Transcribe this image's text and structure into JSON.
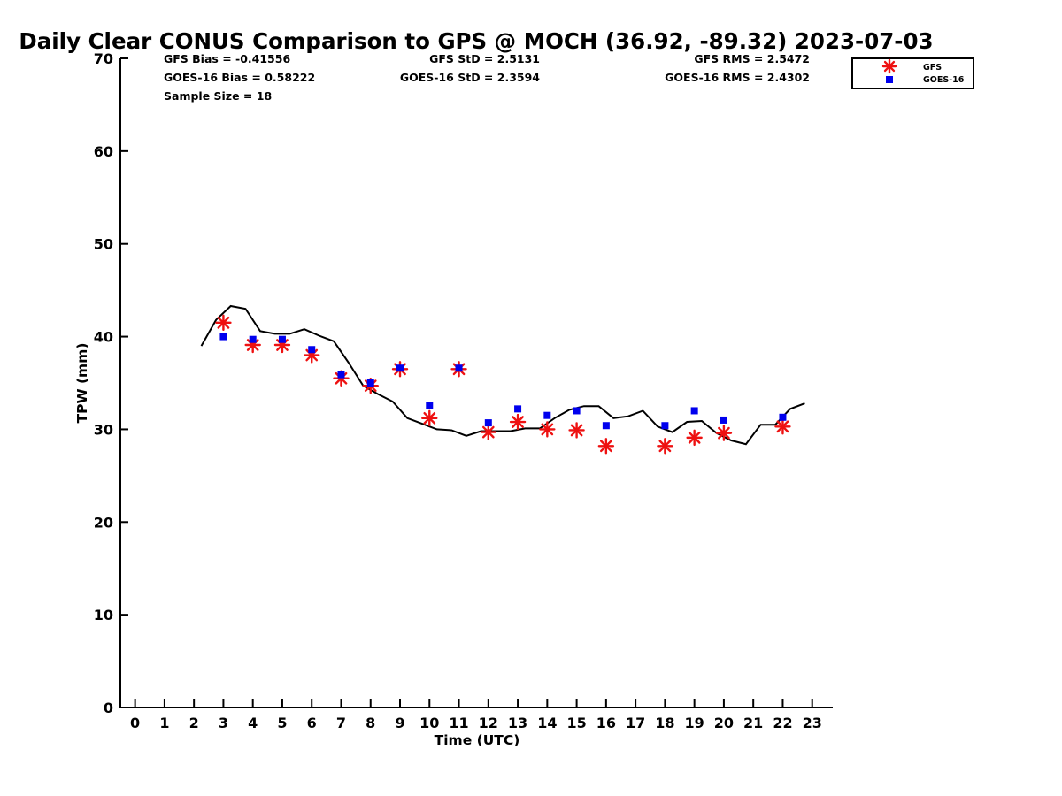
{
  "chart_data": {
    "type": "scatter",
    "title": "Daily Clear CONUS Comparison to GPS @ MOCH (36.92, -89.32) 2023-07-03",
    "xlabel": "Time (UTC)",
    "ylabel": "TPW (mm)",
    "xlim": [
      -0.5,
      23.7
    ],
    "ylim": [
      0,
      70
    ],
    "x_ticks": [
      "0",
      "1",
      "2",
      "3",
      "4",
      "5",
      "6",
      "7",
      "8",
      "9",
      "10",
      "11",
      "12",
      "13",
      "14",
      "15",
      "16",
      "17",
      "18",
      "19",
      "20",
      "21",
      "22",
      "23"
    ],
    "y_ticks": [
      "0",
      "10",
      "20",
      "30",
      "40",
      "50",
      "60",
      "70"
    ],
    "stats": {
      "gfs_bias": "GFS Bias = -0.41556",
      "goes_bias": "GOES-16 Bias = 0.58222",
      "sample_size": "Sample Size = 18",
      "gfs_std": "GFS StD = 2.5131",
      "goes_std": "GOES-16 StD = 2.3594",
      "gfs_rms": "GFS RMS = 2.5472",
      "goes_rms": "GOES-16 RMS = 2.4302"
    },
    "legend_position": "top-right outside plot",
    "gps_line": {
      "color": "#000000",
      "x": [
        2.25,
        2.75,
        3.25,
        3.75,
        4.25,
        4.75,
        5.25,
        5.75,
        6.25,
        6.75,
        7.25,
        7.75,
        8.25,
        8.75,
        9.25,
        9.75,
        10.25,
        10.75,
        11.25,
        11.75,
        12.25,
        12.75,
        13.25,
        13.75,
        14.25,
        14.75,
        15.25,
        15.75,
        16.25,
        16.75,
        17.25,
        17.75,
        18.25,
        18.75,
        19.25,
        19.75,
        20.25,
        20.75,
        21.25,
        21.75,
        22.25,
        22.75
      ],
      "y": [
        39,
        41.8,
        43.3,
        43,
        40.6,
        40.3,
        40.3,
        40.8,
        40.1,
        39.5,
        37.2,
        34.7,
        33.8,
        33,
        31.2,
        30.6,
        30,
        29.9,
        29.3,
        29.8,
        29.8,
        29.8,
        30.1,
        30.1,
        31.2,
        32.1,
        32.5,
        32.5,
        31.2,
        31.4,
        32,
        30.3,
        29.7,
        30.8,
        30.9,
        29.6,
        28.8,
        28.4,
        30.5,
        30.5,
        32.2,
        32.8
      ]
    },
    "series": [
      {
        "name": "GFS",
        "marker": "asterisk",
        "color": "#ee1111",
        "points": [
          [
            3,
            41.5
          ],
          [
            4,
            39.1
          ],
          [
            5,
            39.1
          ],
          [
            6,
            38
          ],
          [
            7,
            35.5
          ],
          [
            8,
            34.7
          ],
          [
            9,
            36.5
          ],
          [
            10,
            31.2
          ],
          [
            11,
            36.5
          ],
          [
            12,
            29.7
          ],
          [
            13,
            30.8
          ],
          [
            14,
            30
          ],
          [
            15,
            29.9
          ],
          [
            16,
            28.2
          ],
          [
            18,
            28.2
          ],
          [
            19,
            29.1
          ],
          [
            20,
            29.6
          ],
          [
            22,
            30.3
          ]
        ]
      },
      {
        "name": "GOES-16",
        "marker": "square",
        "color": "#0000ee",
        "points": [
          [
            3,
            40
          ],
          [
            4,
            39.7
          ],
          [
            5,
            39.7
          ],
          [
            6,
            38.6
          ],
          [
            7,
            35.9
          ],
          [
            8,
            35
          ],
          [
            9,
            36.6
          ],
          [
            10,
            32.6
          ],
          [
            11,
            36.6
          ],
          [
            12,
            30.7
          ],
          [
            13,
            32.2
          ],
          [
            14,
            31.5
          ],
          [
            15,
            32
          ],
          [
            16,
            30.4
          ],
          [
            18,
            30.4
          ],
          [
            19,
            32
          ],
          [
            20,
            31
          ],
          [
            22,
            31.3
          ]
        ]
      }
    ]
  }
}
